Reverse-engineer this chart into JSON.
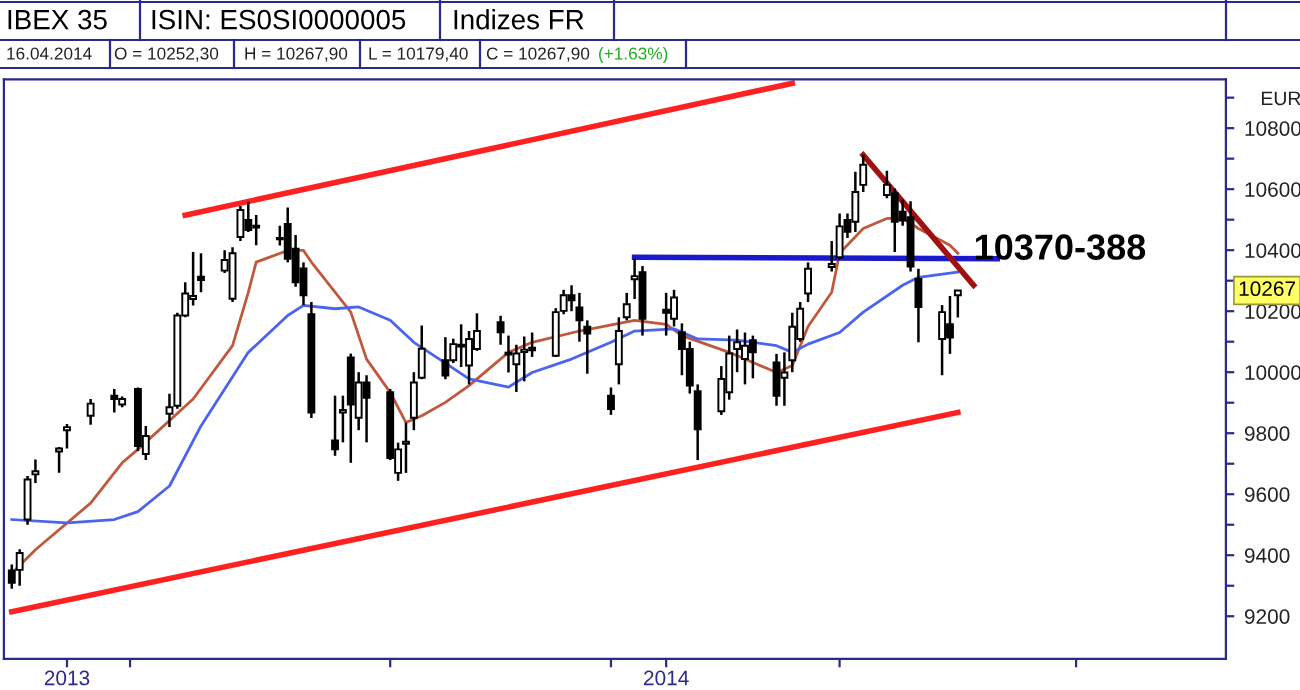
{
  "chart_data": {
    "type": "candlestick",
    "title": "IBEX 35",
    "subtitle": "16.04.2014",
    "ylabel": "EUR",
    "annotations": [
      "ISIN: ES0SI0000005",
      "Indizes FR",
      "O = 10252,30",
      "H = 10267,90",
      "L = 10179,40",
      "C = 10267,90",
      "(+1.63%)",
      {
        "text": "10370-388",
        "x": "2014-04-18",
        "y": 10400
      },
      "10267"
    ],
    "x": [
      "2013-12-17",
      "2013-12-18",
      "2013-12-19",
      "2013-12-20",
      "2013-12-23",
      "2013-12-24",
      "2013-12-27",
      "2013-12-30",
      "2013-12-31",
      "2014-01-02",
      "2014-01-03",
      "2014-01-06",
      "2014-01-07",
      "2014-01-08",
      "2014-01-09",
      "2014-01-10",
      "2014-01-13",
      "2014-01-14",
      "2014-01-15",
      "2014-01-16",
      "2014-01-17",
      "2014-01-20",
      "2014-01-21",
      "2014-01-22",
      "2014-01-23",
      "2014-01-24",
      "2014-01-27",
      "2014-01-28",
      "2014-01-29",
      "2014-01-30",
      "2014-01-31",
      "2014-02-03",
      "2014-02-04",
      "2014-02-05",
      "2014-02-06",
      "2014-02-07",
      "2014-02-10",
      "2014-02-11",
      "2014-02-12",
      "2014-02-13",
      "2014-02-14",
      "2014-02-17",
      "2014-02-18",
      "2014-02-19",
      "2014-02-20",
      "2014-02-21",
      "2014-02-24",
      "2014-02-25",
      "2014-02-26",
      "2014-02-27",
      "2014-02-28",
      "2014-03-03",
      "2014-03-04",
      "2014-03-05",
      "2014-03-06",
      "2014-03-07",
      "2014-03-10",
      "2014-03-11",
      "2014-03-12",
      "2014-03-13",
      "2014-03-14",
      "2014-03-17",
      "2014-03-18",
      "2014-03-19",
      "2014-03-20",
      "2014-03-21",
      "2014-03-24",
      "2014-03-25",
      "2014-03-26",
      "2014-03-27",
      "2014-03-28",
      "2014-03-31",
      "2014-04-01",
      "2014-04-02",
      "2014-04-03",
      "2014-04-04",
      "2014-04-07",
      "2014-04-08",
      "2014-04-09",
      "2014-04-10",
      "2014-04-11",
      "2014-04-14",
      "2014-04-15",
      "2014-04-16"
    ],
    "ohlc": [
      [
        9350,
        9370,
        9290,
        9310
      ],
      [
        9352,
        9420,
        9300,
        9407
      ],
      [
        9517,
        9660,
        9500,
        9648
      ],
      [
        9665,
        9714,
        9637,
        9675
      ],
      [
        9740,
        9755,
        9670,
        9750
      ],
      [
        9810,
        9830,
        9750,
        9820
      ],
      [
        9857,
        9912,
        9828,
        9897
      ],
      [
        9923,
        9945,
        9868,
        9912
      ],
      [
        9894,
        9920,
        9885,
        9912
      ],
      [
        9945,
        9950,
        9742,
        9758
      ],
      [
        9732,
        9824,
        9712,
        9791
      ],
      [
        9864,
        9929,
        9820,
        9885
      ],
      [
        9890,
        10195,
        9880,
        10186
      ],
      [
        10186,
        10295,
        10180,
        10258
      ],
      [
        10240,
        10394,
        10219,
        10250
      ],
      [
        10313,
        10390,
        10262,
        10302
      ],
      [
        10333,
        10400,
        10325,
        10368
      ],
      [
        10241,
        10410,
        10230,
        10390
      ],
      [
        10443,
        10545,
        10430,
        10532
      ],
      [
        10499,
        10559,
        10460,
        10466
      ],
      [
        10480,
        10515,
        10416,
        10474
      ],
      [
        10436,
        10480,
        10415,
        10440
      ],
      [
        10486,
        10540,
        10360,
        10372
      ],
      [
        10405,
        10450,
        10280,
        10295
      ],
      [
        10340,
        10360,
        10220,
        10252
      ],
      [
        10190,
        10230,
        9850,
        9868
      ],
      [
        9776,
        9923,
        9726,
        9747
      ],
      [
        9868,
        9923,
        9770,
        9876
      ],
      [
        10048,
        10061,
        9703,
        9894
      ],
      [
        9851,
        10000,
        9810,
        9966
      ],
      [
        9966,
        9990,
        9770,
        9916
      ],
      [
        9934,
        9945,
        9712,
        9719
      ],
      [
        9670,
        9769,
        9644,
        9747
      ],
      [
        9765,
        9835,
        9670,
        9772
      ],
      [
        9851,
        10000,
        9810,
        9966
      ],
      [
        9982,
        10153,
        9977,
        10077
      ],
      [
        10039,
        10115,
        9977,
        9989
      ],
      [
        10039,
        10110,
        10030,
        10092
      ],
      [
        10084,
        10157,
        10017,
        10090
      ],
      [
        10022,
        10135,
        9960,
        10109
      ],
      [
        10076,
        10193,
        10070,
        10135
      ],
      [
        10164,
        10185,
        10090,
        10131
      ],
      [
        10058,
        10120,
        9999,
        10064
      ],
      [
        10026,
        10090,
        9935,
        10061
      ],
      [
        10066,
        10117,
        9970,
        10074
      ],
      [
        10080,
        10130,
        10050,
        10072
      ],
      [
        10054,
        10210,
        10050,
        10197
      ],
      [
        10201,
        10270,
        10190,
        10252
      ],
      [
        10252,
        10285,
        10200,
        10236
      ],
      [
        10212,
        10260,
        10100,
        10170
      ],
      [
        10149,
        10170,
        9995,
        10127
      ],
      [
        9923,
        9950,
        9860,
        9879
      ],
      [
        10026,
        10180,
        9960,
        10135
      ],
      [
        10180,
        10260,
        10170,
        10223
      ],
      [
        10305,
        10372,
        10240,
        10315
      ],
      [
        10328,
        10348,
        10120,
        10175
      ],
      [
        10205,
        10260,
        10120,
        10195
      ],
      [
        10175,
        10270,
        10150,
        10245
      ],
      [
        10131,
        10160,
        9990,
        10076
      ],
      [
        10076,
        10100,
        9930,
        9956
      ],
      [
        9938,
        9960,
        9712,
        9813
      ],
      [
        9872,
        10020,
        9860,
        9978
      ],
      [
        9934,
        10120,
        9910,
        10061
      ],
      [
        10076,
        10140,
        10000,
        10098
      ],
      [
        10043,
        10130,
        9960,
        10087
      ],
      [
        10105,
        10120,
        9980,
        10065
      ],
      [
        10032,
        10060,
        9890,
        9923
      ],
      [
        9982,
        10065,
        9890,
        9999
      ],
      [
        10039,
        10195,
        10000,
        10149
      ],
      [
        10109,
        10230,
        10100,
        10208
      ],
      [
        10258,
        10360,
        10230,
        10339
      ],
      [
        10345,
        10430,
        10330,
        10355
      ],
      [
        10377,
        10520,
        10370,
        10478
      ],
      [
        10499,
        10520,
        10440,
        10460
      ],
      [
        10493,
        10657,
        10460,
        10591
      ],
      [
        10614,
        10712,
        10591,
        10680
      ],
      [
        10581,
        10660,
        10570,
        10614
      ],
      [
        10587,
        10602,
        10394,
        10493
      ],
      [
        10526,
        10565,
        10480,
        10497
      ],
      [
        10508,
        10560,
        10330,
        10346
      ],
      [
        10306,
        10339,
        10098,
        10214
      ],
      [
        10109,
        10220,
        9990,
        10197
      ],
      [
        10157,
        10250,
        10060,
        10114
      ],
      [
        10252.3,
        10267.9,
        10179.4,
        10267.9
      ]
    ],
    "series": [
      {
        "type": "line",
        "color": "#c0583c",
        "x": [
          "2013-12-17",
          "2013-12-20",
          "2013-12-27",
          "2013-12-31",
          "2014-01-02",
          "2014-01-09",
          "2014-01-14",
          "2014-01-16",
          "2014-01-17",
          "2014-01-21",
          "2014-01-23",
          "2014-01-24",
          "2014-01-29",
          "2014-01-31",
          "2014-02-03",
          "2014-02-05",
          "2014-02-07",
          "2014-02-10",
          "2014-02-13",
          "2014-02-18",
          "2014-02-21",
          "2014-02-27",
          "2014-03-06",
          "2014-03-10",
          "2014-03-12",
          "2014-03-18",
          "2014-03-20",
          "2014-03-24",
          "2014-03-26",
          "2014-03-28",
          "2014-03-31",
          "2014-04-01",
          "2014-04-04",
          "2014-04-07",
          "2014-04-09",
          "2014-04-11",
          "2014-04-15",
          "2014-04-16"
        ],
        "values": [
          9341,
          9418,
          9571,
          9703,
          9747,
          9912,
          10087,
          10262,
          10361,
          10399,
          10399,
          10361,
          10197,
          10043,
          9934,
          9835,
          9857,
          9901,
          9956,
          10065,
          10098,
          10135,
          10170,
          10157,
          10120,
          10065,
          10043,
          9999,
          10022,
          10150,
          10262,
          10390,
          10471,
          10504,
          10504,
          10471,
          10416,
          10390
        ]
      },
      {
        "type": "line",
        "color": "#4a64f0",
        "x": [
          "2013-12-17",
          "2013-12-24",
          "2013-12-30",
          "2014-01-02",
          "2014-01-06",
          "2014-01-10",
          "2014-01-16",
          "2014-01-21",
          "2014-01-23",
          "2014-01-27",
          "2014-01-30",
          "2014-02-03",
          "2014-02-06",
          "2014-02-10",
          "2014-02-13",
          "2014-02-18",
          "2014-02-21",
          "2014-02-26",
          "2014-03-03",
          "2014-03-06",
          "2014-03-11",
          "2014-03-14",
          "2014-03-19",
          "2014-03-24",
          "2014-03-26",
          "2014-03-28",
          "2014-04-01",
          "2014-04-04",
          "2014-04-09",
          "2014-04-11",
          "2014-04-16"
        ],
        "values": [
          9517,
          9506,
          9517,
          9543,
          9627,
          9824,
          10065,
          10186,
          10219,
          10208,
          10214,
          10170,
          10098,
          10030,
          9978,
          9951,
          9999,
          10043,
          10098,
          10135,
          10142,
          10109,
          10105,
          10087,
          10065,
          10092,
          10130,
          10197,
          10285,
          10311,
          10328
        ]
      },
      {
        "type": "line",
        "color": "#ff2020",
        "x": [
          "2014-01-08",
          "2014-03-26"
        ],
        "values": [
          10515,
          10947
        ]
      },
      {
        "type": "line",
        "color": "#ff2020",
        "x": [
          "2013-12-17",
          "2014-04-16"
        ],
        "values": [
          9215,
          9868
        ]
      },
      {
        "type": "line",
        "color": "#1a1acc",
        "x": [
          "2014-03-06",
          "2014-04-21"
        ],
        "values": [
          10377,
          10372
        ]
      },
      {
        "type": "line",
        "color": "#a01010",
        "x": [
          "2014-04-04",
          "2014-04-18"
        ],
        "values": [
          10712,
          10285
        ]
      }
    ],
    "xlim": [
      "2013-12-16",
      "2014-05-20"
    ],
    "xticks": [
      {
        "value": "2013-12-24",
        "label": "2013"
      },
      {
        "value": "2014-01-01",
        "label": null
      },
      {
        "value": "2014-02-03",
        "label": null
      },
      {
        "value": "2014-03-03",
        "label": null
      },
      {
        "value": "2014-03-10",
        "label": "2014"
      },
      {
        "value": "2014-04-01",
        "label": null
      },
      {
        "value": "2014-05-01",
        "label": null
      }
    ],
    "ylim": [
      9060,
      10960
    ],
    "yticks": [
      9200,
      {
        "value": 9300,
        "label": null
      },
      9400,
      {
        "value": 9500,
        "label": null
      },
      9600,
      {
        "value": 9700,
        "label": null
      },
      9800,
      {
        "value": 9900,
        "label": null
      },
      10000,
      {
        "value": 10100,
        "label": null
      },
      10200,
      {
        "value": 10300,
        "label": null
      },
      10400,
      {
        "value": 10500,
        "label": null
      },
      10600,
      {
        "value": 10700,
        "label": null
      },
      10800,
      {
        "value": 10900,
        "label": null
      }
    ],
    "grid": false,
    "legend": false,
    "line_style": "solid"
  }
}
